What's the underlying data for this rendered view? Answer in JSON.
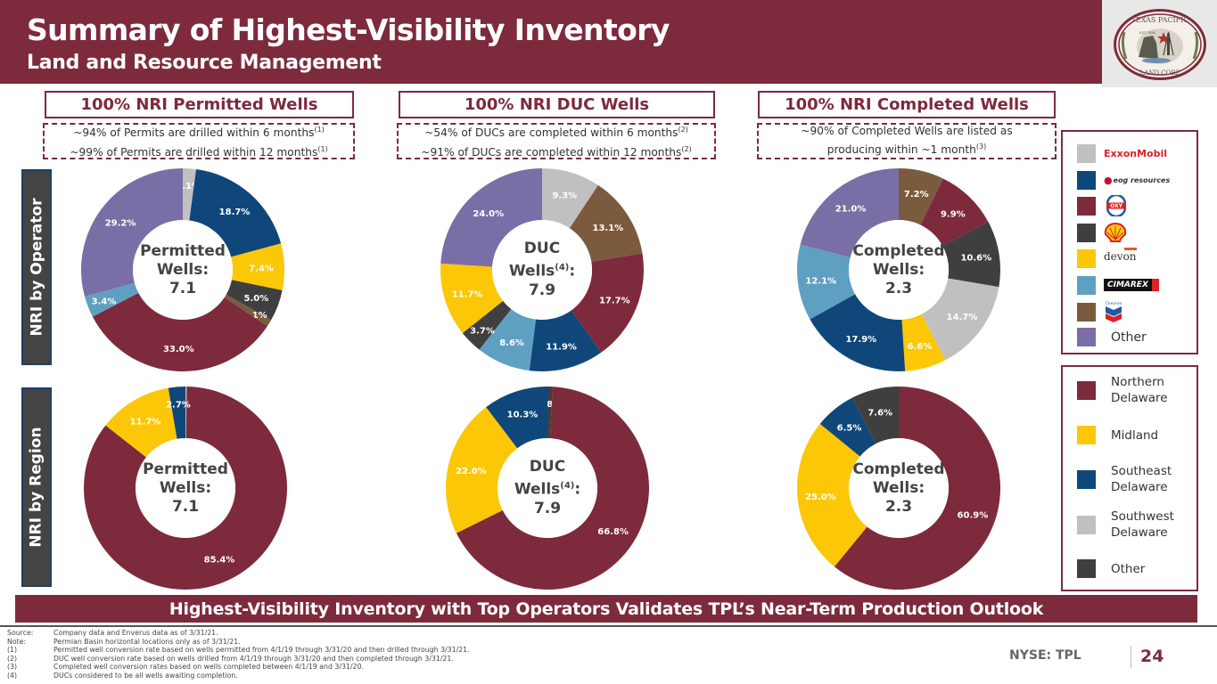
{
  "header": {
    "title": "Summary of Highest-Visibility Inventory",
    "subtitle": "Land and Resource Management",
    "logo": {
      "icon": "texas-pacific-land-corp-seal",
      "top_text": "TEXAS PACIFIC",
      "bottom_text": "LAND CORP",
      "est": "EST. 1888"
    }
  },
  "colors": {
    "brand": "#7d2a3c",
    "exxonmobil": "#c0c0c0",
    "eog": "#0f477a",
    "oxy": "#7d2a3c",
    "shell": "#3f3f3f",
    "devon": "#fcc707",
    "cimarex": "#5fa0c2",
    "chevron": "#7b5a3e",
    "other_operator": "#7a6ea6",
    "northern_delaware": "#7d2a3c",
    "midland": "#fcc707",
    "southeast_delaware": "#0f477a",
    "southwest_delaware": "#c0c0c0",
    "other_region": "#3f3f3f"
  },
  "columns": [
    {
      "title": "100%  NRI Permitted Wells",
      "notes": [
        {
          "text": "~94% of Permits are drilled within 6 months",
          "ref": "(1)"
        },
        {
          "text": "~99% of Permits are drilled within 12 months",
          "ref": "(1)"
        }
      ]
    },
    {
      "title": "100% NRI DUC Wells",
      "notes": [
        {
          "text": "~54% of DUCs are completed within 6 months",
          "ref": "(2)"
        },
        {
          "text": "~91% of DUCs are completed within 12 months",
          "ref": "(2)"
        }
      ]
    },
    {
      "title": "100%  NRI Completed Wells",
      "notes": [
        {
          "text": "~90% of Completed Wells are listed as",
          "ref": ""
        },
        {
          "text": "producing within ~1 month",
          "ref": "(3)"
        }
      ]
    }
  ],
  "row_labels": {
    "operator": "NRI by Operator",
    "region": "NRI by Region"
  },
  "legend_operator": [
    {
      "name": "ExxonMobil",
      "logo_text": "ExxonMobil",
      "color_key": "exxonmobil"
    },
    {
      "name": "EOG Resources",
      "logo_text": "eog resources",
      "color_key": "eog"
    },
    {
      "name": "Oxy",
      "logo_text": "OXY",
      "color_key": "oxy"
    },
    {
      "name": "Shell",
      "logo_text": "",
      "color_key": "shell"
    },
    {
      "name": "Devon",
      "logo_text": "devon",
      "color_key": "devon"
    },
    {
      "name": "Cimarex",
      "logo_text": "CIMAREX",
      "color_key": "cimarex"
    },
    {
      "name": "Chevron",
      "logo_text": "Chevron",
      "color_key": "chevron"
    },
    {
      "name": "Other",
      "logo_text": "Other",
      "color_key": "other_operator"
    }
  ],
  "legend_region": [
    {
      "name": "Northern Delaware",
      "lines": [
        "Northern",
        "Delaware"
      ],
      "color_key": "northern_delaware"
    },
    {
      "name": "Midland",
      "lines": [
        "Midland"
      ],
      "color_key": "midland"
    },
    {
      "name": "Southeast Delaware",
      "lines": [
        "Southeast",
        "Delaware"
      ],
      "color_key": "southeast_delaware"
    },
    {
      "name": "Southwest Delaware",
      "lines": [
        "Southwest",
        "Delaware"
      ],
      "color_key": "southwest_delaware"
    },
    {
      "name": "Other",
      "lines": [
        "Other"
      ],
      "color_key": "other_region"
    }
  ],
  "chart_data": [
    {
      "type": "pie",
      "id": "permitted-operator",
      "title": "NRI by Operator - Permitted Wells",
      "donut": true,
      "center": {
        "lines": [
          "Permitted",
          "Wells:",
          "7.1"
        ]
      },
      "slices": [
        {
          "label": "ExxonMobil",
          "value": 2.1,
          "color_key": "exxonmobil",
          "text": "2.1%"
        },
        {
          "label": "EOG Resources",
          "value": 18.7,
          "color_key": "eog",
          "text": "18.7%"
        },
        {
          "label": "Devon",
          "value": 7.4,
          "color_key": "devon",
          "text": "7.4%"
        },
        {
          "label": "Shell",
          "value": 5.0,
          "color_key": "shell",
          "text": "5.0%"
        },
        {
          "label": "Chevron",
          "value": 1.1,
          "color_key": "chevron",
          "text": "1.1%"
        },
        {
          "label": "Oxy",
          "value": 33.0,
          "color_key": "oxy",
          "text": "33.0%"
        },
        {
          "label": "Cimarex",
          "value": 3.4,
          "color_key": "cimarex",
          "text": "3.4%"
        },
        {
          "label": "Other",
          "value": 29.2,
          "color_key": "other_operator",
          "text": "29.2%"
        }
      ]
    },
    {
      "type": "pie",
      "id": "duc-operator",
      "title": "NRI by Operator - DUC Wells",
      "donut": true,
      "center": {
        "lines": [
          "DUC",
          "Wells(4):",
          "7.9"
        ]
      },
      "slices": [
        {
          "label": "ExxonMobil",
          "value": 9.3,
          "color_key": "exxonmobil",
          "text": "9.3%"
        },
        {
          "label": "Chevron",
          "value": 13.1,
          "color_key": "chevron",
          "text": "13.1%"
        },
        {
          "label": "Oxy",
          "value": 17.7,
          "color_key": "oxy",
          "text": "17.7%"
        },
        {
          "label": "EOG Resources",
          "value": 11.9,
          "color_key": "eog",
          "text": "11.9%"
        },
        {
          "label": "Cimarex",
          "value": 8.6,
          "color_key": "cimarex",
          "text": "8.6%"
        },
        {
          "label": "Shell",
          "value": 3.7,
          "color_key": "shell",
          "text": "3.7%"
        },
        {
          "label": "Devon",
          "value": 11.7,
          "color_key": "devon",
          "text": "11.7%"
        },
        {
          "label": "Other",
          "value": 24.0,
          "color_key": "other_operator",
          "text": "24.0%"
        }
      ]
    },
    {
      "type": "pie",
      "id": "completed-operator",
      "title": "NRI by Operator - Completed Wells",
      "donut": true,
      "center": {
        "lines": [
          "Completed",
          "Wells:",
          "2.3"
        ]
      },
      "slices": [
        {
          "label": "Chevron",
          "value": 7.2,
          "color_key": "chevron",
          "text": "7.2%"
        },
        {
          "label": "Oxy",
          "value": 9.9,
          "color_key": "oxy",
          "text": "9.9%"
        },
        {
          "label": "Shell",
          "value": 10.6,
          "color_key": "shell",
          "text": "10.6%"
        },
        {
          "label": "ExxonMobil",
          "value": 14.7,
          "color_key": "exxonmobil",
          "text": "14.7%"
        },
        {
          "label": "Devon",
          "value": 6.6,
          "color_key": "devon",
          "text": "6.6%"
        },
        {
          "label": "EOG Resources",
          "value": 17.9,
          "color_key": "eog",
          "text": "17.9%"
        },
        {
          "label": "Cimarex",
          "value": 12.1,
          "color_key": "cimarex",
          "text": "12.1%"
        },
        {
          "label": "Other",
          "value": 21.0,
          "color_key": "other_operator",
          "text": "21.0%"
        }
      ]
    },
    {
      "type": "pie",
      "id": "permitted-region",
      "title": "NRI by Region - Permitted Wells",
      "donut": true,
      "center": {
        "lines": [
          "Permitted",
          "Wells:",
          "7.1"
        ]
      },
      "slices": [
        {
          "label": "Other",
          "value": 0.2,
          "color_key": "southwest_delaware",
          "text": ""
        },
        {
          "label": "Northern Delaware",
          "value": 85.4,
          "color_key": "northern_delaware",
          "text": "85.4%"
        },
        {
          "label": "Midland",
          "value": 11.7,
          "color_key": "midland",
          "text": "11.7%"
        },
        {
          "label": "Southeast Delaware",
          "value": 2.7,
          "color_key": "southeast_delaware",
          "text": "2.7%"
        }
      ]
    },
    {
      "type": "pie",
      "id": "duc-region",
      "title": "NRI by Region - DUC Wells",
      "donut": true,
      "center": {
        "lines": [
          "DUC",
          "Wells(4):",
          "7.9"
        ]
      },
      "slices": [
        {
          "label": "Other",
          "value": 0.8,
          "color_key": "other_region",
          "text": "0.8%"
        },
        {
          "label": "Northern Delaware",
          "value": 66.8,
          "color_key": "northern_delaware",
          "text": "66.8%"
        },
        {
          "label": "Midland",
          "value": 22.0,
          "color_key": "midland",
          "text": "22.0%"
        },
        {
          "label": "Southeast Delaware",
          "value": 10.3,
          "color_key": "southeast_delaware",
          "text": "10.3%"
        }
      ]
    },
    {
      "type": "pie",
      "id": "completed-region",
      "title": "NRI by Region - Completed Wells",
      "donut": true,
      "center": {
        "lines": [
          "Completed",
          "Wells:",
          "2.3"
        ]
      },
      "slices": [
        {
          "label": "Northern Delaware",
          "value": 60.9,
          "color_key": "northern_delaware",
          "text": "60.9%"
        },
        {
          "label": "Midland",
          "value": 25.0,
          "color_key": "midland",
          "text": "25.0%"
        },
        {
          "label": "Southeast Delaware",
          "value": 6.5,
          "color_key": "southeast_delaware",
          "text": "6.5%"
        },
        {
          "label": "Other",
          "value": 7.6,
          "color_key": "other_region",
          "text": "7.6%"
        }
      ]
    }
  ],
  "banner": "Highest-Visibility Inventory with Top Operators Validates TPL’s Near-Term Production Outlook",
  "footnotes": [
    {
      "key": "Source:",
      "text": "Company data and Enverus data as of 3/31/21."
    },
    {
      "key": "Note:",
      "text": "Permian Basin horizontal locations only as of 3/31/21."
    },
    {
      "key": "(1)",
      "text": "Permitted well conversion rate based on wells permitted from 4/1/19 through 3/31/20 and then drilled through 3/31/21."
    },
    {
      "key": "(2)",
      "text": "DUC well conversion rate based on wells drilled from 4/1/19 through 3/31/20 and then completed through 3/31/21."
    },
    {
      "key": "(3)",
      "text": "Completed well conversion rates based on wells completed between 4/1/19 and 3/31/20."
    },
    {
      "key": "(4)",
      "text": "DUCs considered to be all wells awaiting completion."
    }
  ],
  "footer": {
    "ticker": "NYSE: TPL",
    "page": "24"
  }
}
